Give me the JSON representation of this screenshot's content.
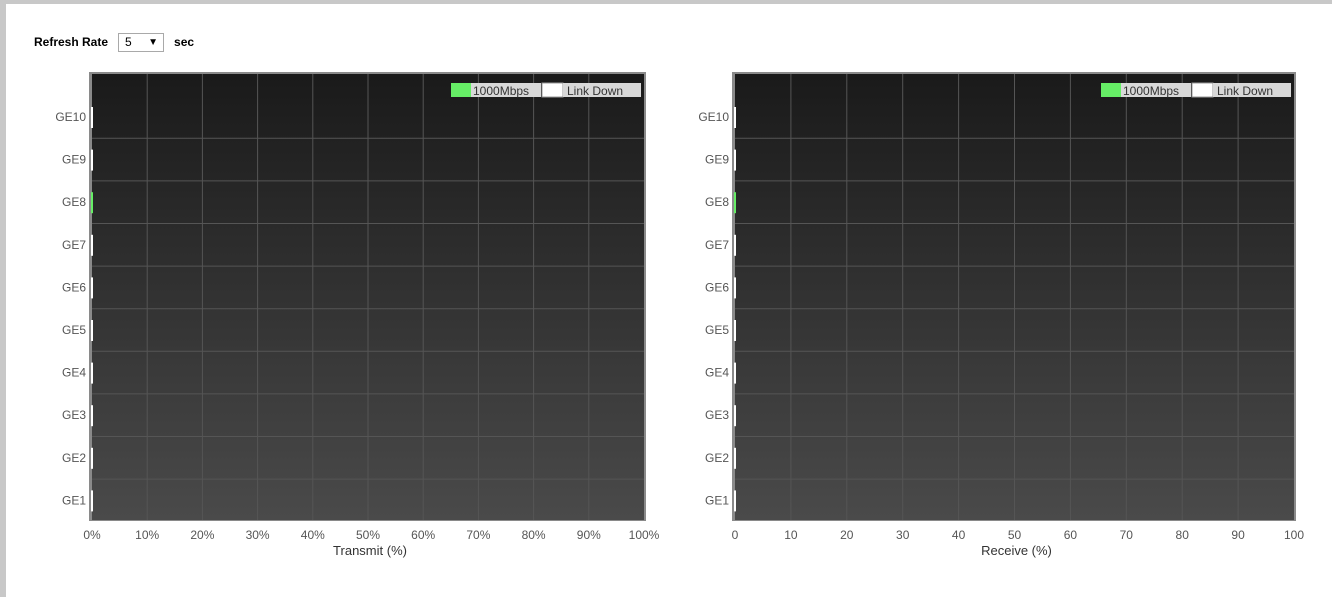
{
  "refresh": {
    "label": "Refresh Rate",
    "value": "5",
    "unit": "sec"
  },
  "colors": {
    "speed_1000": "#66ee66",
    "link_down": "#ffffff",
    "plot_bg_top": "#1a1a1a",
    "plot_bg_bottom": "#4a4a4a"
  },
  "chart_data": [
    {
      "type": "bar",
      "orientation": "horizontal",
      "xlabel": "Transmit (%)",
      "x_tick_labels": [
        "0%",
        "10%",
        "20%",
        "30%",
        "40%",
        "50%",
        "60%",
        "70%",
        "80%",
        "90%",
        "100%"
      ],
      "xlim": [
        0,
        100
      ],
      "grid": true,
      "legend": {
        "placement": "top-right",
        "items": [
          {
            "label": "1000Mbps",
            "color": "#66ee66"
          },
          {
            "label": "Link Down",
            "color": "#ffffff"
          }
        ]
      },
      "categories": [
        "GE10",
        "GE9",
        "GE8",
        "GE7",
        "GE6",
        "GE5",
        "GE4",
        "GE3",
        "GE2",
        "GE1"
      ],
      "values": [
        0,
        0,
        0,
        0,
        0,
        0,
        0,
        0,
        0,
        0
      ],
      "status": [
        "Link Down",
        "Link Down",
        "1000Mbps",
        "Link Down",
        "Link Down",
        "Link Down",
        "Link Down",
        "Link Down",
        "Link Down",
        "Link Down"
      ]
    },
    {
      "type": "bar",
      "orientation": "horizontal",
      "xlabel": "Receive (%)",
      "x_tick_labels": [
        "0",
        "10",
        "20",
        "30",
        "40",
        "50",
        "60",
        "70",
        "80",
        "90",
        "100"
      ],
      "xlim": [
        0,
        100
      ],
      "grid": true,
      "legend": {
        "placement": "top-right",
        "items": [
          {
            "label": "1000Mbps",
            "color": "#66ee66"
          },
          {
            "label": "Link Down",
            "color": "#ffffff"
          }
        ]
      },
      "categories": [
        "GE10",
        "GE9",
        "GE8",
        "GE7",
        "GE6",
        "GE5",
        "GE4",
        "GE3",
        "GE2",
        "GE1"
      ],
      "values": [
        0,
        0,
        0,
        0,
        0,
        0,
        0,
        0,
        0,
        0
      ],
      "status": [
        "Link Down",
        "Link Down",
        "1000Mbps",
        "Link Down",
        "Link Down",
        "Link Down",
        "Link Down",
        "Link Down",
        "Link Down",
        "Link Down"
      ]
    }
  ]
}
